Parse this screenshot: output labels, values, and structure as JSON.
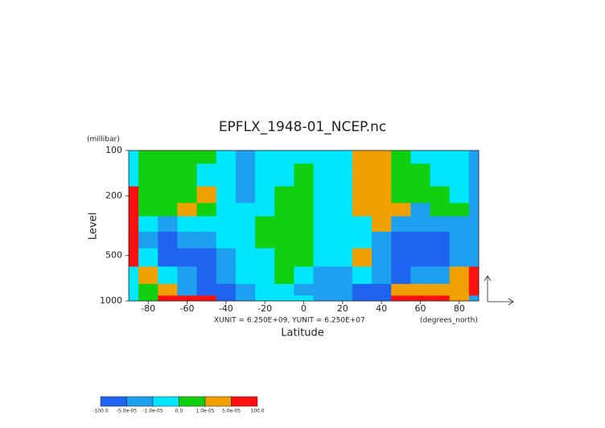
{
  "chart_data": {
    "type": "contour",
    "title": "EPFLX_1948-01_NCEP.nc",
    "y_unit": "(millibar)",
    "ylabel": "Level",
    "xlabel": "Latitude",
    "x_unit": "(degrees_north)",
    "vector_scale": "XUNIT = 6.250E+09, YUNIT = 6.250E+07",
    "x": [
      -90,
      -80,
      -70,
      -60,
      -50,
      -40,
      -30,
      -20,
      -10,
      0,
      10,
      20,
      30,
      40,
      50,
      60,
      70,
      80,
      90
    ],
    "y": [
      100,
      150,
      200,
      250,
      300,
      400,
      500,
      700,
      850,
      1000
    ],
    "z": [
      [
        -5e-06,
        5e-06,
        5e-06,
        5e-06,
        5e-06,
        -5e-06,
        -3e-05,
        -5e-06,
        -5e-06,
        -5e-06,
        -5e-06,
        -5e-06,
        3e-05,
        3e-05,
        5e-06,
        -5e-06,
        -5e-06,
        -5e-06,
        -3e-05
      ],
      [
        -5e-06,
        5e-06,
        5e-06,
        5e-06,
        -5e-06,
        -5e-06,
        -3e-05,
        -5e-06,
        -5e-06,
        5e-06,
        -5e-06,
        -5e-06,
        3e-05,
        3e-05,
        5e-06,
        5e-06,
        -5e-06,
        -5e-06,
        -3e-05
      ],
      [
        8e-05,
        5e-06,
        5e-06,
        5e-06,
        3e-05,
        -5e-06,
        -3e-05,
        -5e-06,
        5e-06,
        5e-06,
        -5e-06,
        -5e-06,
        3e-05,
        3e-05,
        5e-06,
        5e-06,
        5e-06,
        -5e-06,
        -3e-05
      ],
      [
        8e-05,
        5e-06,
        5e-06,
        3e-05,
        5e-06,
        -5e-06,
        -5e-06,
        -5e-06,
        5e-06,
        5e-06,
        -5e-06,
        -5e-06,
        3e-05,
        3e-05,
        3e-05,
        -3e-05,
        5e-06,
        5e-06,
        -3e-05
      ],
      [
        8e-05,
        -5e-06,
        -3e-05,
        -5e-06,
        -5e-06,
        -5e-06,
        -5e-06,
        5e-06,
        5e-06,
        5e-06,
        -5e-06,
        -5e-06,
        -5e-06,
        3e-05,
        -3e-05,
        -3e-05,
        -3e-05,
        -3e-05,
        -3e-05
      ],
      [
        8e-05,
        -3e-05,
        -8e-05,
        -3e-05,
        -3e-05,
        -5e-06,
        -5e-06,
        5e-06,
        5e-06,
        5e-06,
        -5e-06,
        -5e-06,
        -5e-06,
        -3e-05,
        -8e-05,
        -8e-05,
        -8e-05,
        -3e-05,
        -3e-05
      ],
      [
        8e-05,
        -5e-06,
        -8e-05,
        -8e-05,
        -8e-05,
        -3e-05,
        -5e-06,
        -5e-06,
        5e-06,
        5e-06,
        -5e-06,
        -5e-06,
        3e-05,
        -3e-05,
        -8e-05,
        -8e-05,
        -8e-05,
        -3e-05,
        -3e-05
      ],
      [
        -5e-06,
        3e-05,
        -5e-06,
        -3e-05,
        -8e-05,
        -3e-05,
        -5e-06,
        -5e-06,
        5e-06,
        -5e-06,
        -3e-05,
        -3e-05,
        -5e-06,
        -3e-05,
        -8e-05,
        -3e-05,
        -3e-05,
        3e-05,
        8e-05
      ],
      [
        -5e-06,
        5e-06,
        3e-05,
        -3e-05,
        -8e-05,
        -8e-05,
        -3e-05,
        -5e-06,
        -5e-06,
        -3e-05,
        -3e-05,
        -3e-05,
        -8e-05,
        -8e-05,
        3e-05,
        3e-05,
        3e-05,
        3e-05,
        8e-05
      ],
      [
        -5e-06,
        5e-06,
        8e-05,
        8e-05,
        8e-05,
        -8e-05,
        -3e-05,
        -5e-06,
        -5e-06,
        -5e-06,
        -3e-05,
        -3e-05,
        -8e-05,
        -8e-05,
        8e-05,
        8e-05,
        8e-05,
        3e-05,
        -3e-05
      ]
    ],
    "xlim": [
      -90,
      90
    ],
    "xticks": [
      -80,
      -60,
      -40,
      -20,
      0,
      20,
      40,
      60,
      80
    ],
    "ylim": [
      1000,
      100
    ],
    "yticks": [
      100,
      200,
      500,
      1000
    ],
    "ylog": true,
    "levels": [
      {
        "value": -100,
        "label": "-100.0"
      },
      {
        "value": -5e-05,
        "label": "-5.0e-05"
      },
      {
        "value": -1e-05,
        "label": "-1.0e-05"
      },
      {
        "value": 0,
        "label": "0.0"
      },
      {
        "value": 1e-05,
        "label": "1.0e-05"
      },
      {
        "value": 5e-05,
        "label": "5.0e-05"
      },
      {
        "value": 100,
        "label": "100.0"
      }
    ],
    "colors": [
      "#1e64f0",
      "#1ea0f0",
      "#00e6ff",
      "#10d010",
      "#f0a000",
      "#ff1010"
    ]
  }
}
